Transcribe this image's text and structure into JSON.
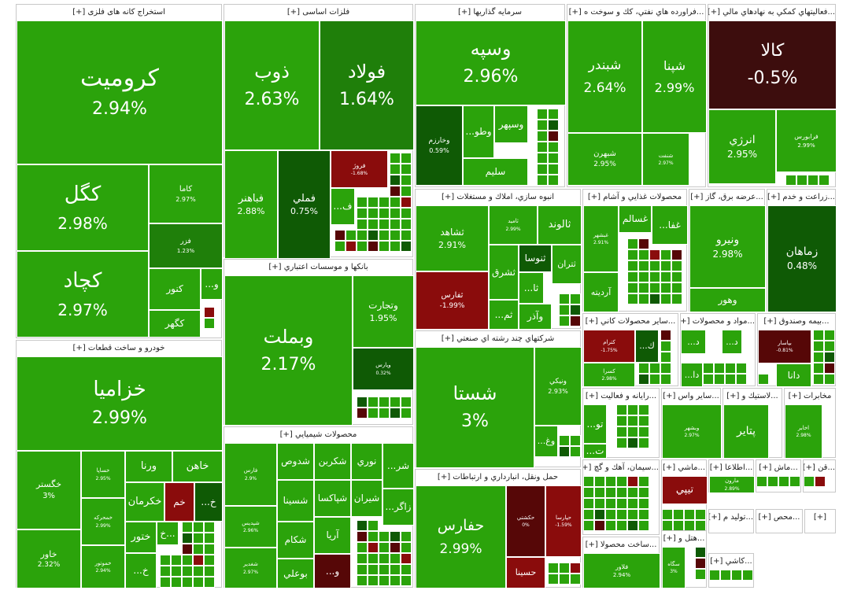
{
  "chart_data": {
    "type": "treemap",
    "colors": {
      "up": "#2ba30b",
      "up_mid": "#1f7f0a",
      "up_low": "#0f5a05",
      "flat": "#3d0d0d",
      "down": "#8a0c0c",
      "down_deep": "#560707",
      "bright_red": "#ff1f1f"
    },
    "sectors": [
      {
        "name": "استخراج کانه های فلزی [+]",
        "items": [
          {
            "name": "کروميت",
            "change": "2.94%"
          },
          {
            "name": "كگل",
            "change": "2.98%"
          },
          {
            "name": "کچاد",
            "change": "2.97%"
          },
          {
            "name": "کاما",
            "change": "2.97%"
          },
          {
            "name": "فزر",
            "change": "1.23%"
          },
          {
            "name": "کنور",
            "change": ""
          },
          {
            "name": "کگهر",
            "change": ""
          },
          {
            "name": "...و",
            "change": ""
          }
        ]
      },
      {
        "name": "فلزات اساسی [+]",
        "items": [
          {
            "name": "ذوب",
            "change": "2.63%"
          },
          {
            "name": "فولاد",
            "change": "1.64%"
          },
          {
            "name": "فباهنر",
            "change": "2.88%"
          },
          {
            "name": "فملي",
            "change": "0.75%"
          },
          {
            "name": "فروژ",
            "change": "-1.68%"
          },
          {
            "name": "...ف",
            "change": ""
          }
        ]
      },
      {
        "name": "سرمايه گذاريها [+]",
        "items": [
          {
            "name": "وسپه",
            "change": "2.96%"
          },
          {
            "name": "وخارزم",
            "change": "0.59%"
          },
          {
            "name": "...وطو",
            "change": ""
          },
          {
            "name": "وسپهر",
            "change": ""
          },
          {
            "name": "سليم",
            "change": ""
          }
        ]
      },
      {
        "name": "...فراورده هاي نفتي، كك و سوخت ه [+]",
        "items": [
          {
            "name": "شبندر",
            "change": "2.64%"
          },
          {
            "name": "شپنا",
            "change": "2.99%"
          },
          {
            "name": "شبهرن",
            "change": "2.95%"
          },
          {
            "name": "شنفت",
            "change": "2.97%"
          }
        ]
      },
      {
        "name": "...فعاليتهاي كمكي به نهادهاي مالي [+]",
        "items": [
          {
            "name": "كالا",
            "change": "-0.5%"
          },
          {
            "name": "انرژي",
            "change": "2.95%"
          },
          {
            "name": "فرابورس",
            "change": "2.99%"
          }
        ]
      },
      {
        "name": "انبوه سازي، املاك و مستغلات [+]",
        "items": [
          {
            "name": "ثشاهد",
            "change": "2.91%"
          },
          {
            "name": "ثاميد",
            "change": "2.99%"
          },
          {
            "name": "ثالوند",
            "change": ""
          },
          {
            "name": "ثشرق",
            "change": ""
          },
          {
            "name": "ثنوسا",
            "change": ""
          },
          {
            "name": "ثتران",
            "change": ""
          },
          {
            "name": "ثفارس",
            "change": "-1.99%"
          },
          {
            "name": "...ثا",
            "change": ""
          },
          {
            "name": "...ثم",
            "change": ""
          },
          {
            "name": "وآذر",
            "change": ""
          }
        ]
      },
      {
        "name": "محصولات غذايي و آشام [+]",
        "items": [
          {
            "name": "غبشهر",
            "change": "2.91%"
          },
          {
            "name": "غسالم",
            "change": ""
          },
          {
            "name": "...غفا",
            "change": ""
          },
          {
            "name": "آرديته",
            "change": ""
          }
        ]
      },
      {
        "name": "...عرضه برق، گاز [+]",
        "items": [
          {
            "name": "ونيرو",
            "change": "2.98%"
          },
          {
            "name": "وهور",
            "change": ""
          }
        ]
      },
      {
        "name": "...زراعت و خدم [+]",
        "items": [
          {
            "name": "زماهان",
            "change": "0.48%"
          }
        ]
      },
      {
        "name": "خودرو و ساخت قطعات [+]",
        "items": [
          {
            "name": "خزاميا",
            "change": "2.99%"
          },
          {
            "name": "خگستر",
            "change": "3%"
          },
          {
            "name": "خاور",
            "change": "2.32%"
          },
          {
            "name": "خساپا",
            "change": "2.95%"
          },
          {
            "name": "خمحرکه",
            "change": "2.99%"
          },
          {
            "name": "خموتور",
            "change": "2.94%"
          },
          {
            "name": "ورنا",
            "change": ""
          },
          {
            "name": "خاهن",
            "change": ""
          },
          {
            "name": "خكرمان",
            "change": ""
          },
          {
            "name": "خم",
            "change": ""
          },
          {
            "name": "...خ",
            "change": ""
          },
          {
            "name": "ختور",
            "change": ""
          },
          {
            "name": "خ...",
            "change": ""
          },
          {
            "name": "...خ",
            "change": ""
          }
        ]
      },
      {
        "name": "بانكها و موسسات اعتباري [+]",
        "items": [
          {
            "name": "وبملت",
            "change": "2.17%"
          },
          {
            "name": "وتجارت",
            "change": "1.95%"
          },
          {
            "name": "وپارس",
            "change": "0.32%"
          }
        ]
      },
      {
        "name": "محصولات شيميايي [+]",
        "items": [
          {
            "name": "فارس",
            "change": "2.9%"
          },
          {
            "name": "شدوص",
            "change": ""
          },
          {
            "name": "شکربن",
            "change": ""
          },
          {
            "name": "نوري",
            "change": ""
          },
          {
            "name": "...شر",
            "change": ""
          },
          {
            "name": "شپديس",
            "change": "2.96%"
          },
          {
            "name": "شسينا",
            "change": ""
          },
          {
            "name": "شپاکسا",
            "change": ""
          },
          {
            "name": "شيران",
            "change": ""
          },
          {
            "name": "...زاگر",
            "change": ""
          },
          {
            "name": "شکام",
            "change": ""
          },
          {
            "name": "آريا",
            "change": ""
          },
          {
            "name": "شغدير",
            "change": "2.97%"
          },
          {
            "name": "بوعلي",
            "change": ""
          },
          {
            "name": "...و",
            "change": ""
          }
        ]
      },
      {
        "name": "شركتهاي چند رشته اي صنعتي [+]",
        "items": [
          {
            "name": "شستا",
            "change": "3%"
          },
          {
            "name": "ونيکي",
            "change": "2.93%"
          },
          {
            "name": "...وغ",
            "change": ""
          }
        ]
      },
      {
        "name": "حمل ونقل، انبارداري و ارتباطات [+]",
        "items": [
          {
            "name": "حفارس",
            "change": "2.99%"
          },
          {
            "name": "حكشتي",
            "change": "0%"
          },
          {
            "name": "حپارسا",
            "change": "-1.59%"
          },
          {
            "name": "حسينا",
            "change": ""
          }
        ]
      },
      {
        "name": "...ساير محصولات كاني [+]",
        "items": [
          {
            "name": "كترام",
            "change": "-1.75%"
          },
          {
            "name": "...ك",
            "change": ""
          },
          {
            "name": "كسرا",
            "change": "2.98%"
          }
        ]
      },
      {
        "name": "...مواد و محصولات [+]",
        "items": [
          {
            "name": "...د",
            "change": ""
          },
          {
            "name": "...د",
            "change": ""
          },
          {
            "name": "...دا",
            "change": ""
          }
        ]
      },
      {
        "name": "...بيمه وصندوق [+]",
        "items": [
          {
            "name": "بپاسار",
            "change": "-0.81%"
          },
          {
            "name": "دانا",
            "change": ""
          }
        ]
      },
      {
        "name": "...رايانه و فعاليت [+]",
        "items": [
          {
            "name": "...تو",
            "change": ""
          },
          {
            "name": "...ت",
            "change": ""
          }
        ]
      },
      {
        "name": "...ساير واس [+]",
        "items": [
          {
            "name": "وبشهر",
            "change": "2.97%"
          }
        ]
      },
      {
        "name": "...لاستيك و [+]",
        "items": [
          {
            "name": "پتاير",
            "change": ""
          }
        ]
      },
      {
        "name": "مخابرات [+]",
        "items": [
          {
            "name": "اخابر",
            "change": "2.98%"
          }
        ]
      },
      {
        "name": "...سيمان، آهك و گچ [+]",
        "items": []
      },
      {
        "name": "...ماشي [+]",
        "items": [
          {
            "name": "تيپي",
            "change": ""
          }
        ]
      },
      {
        "name": "...اطلاعا [+]",
        "items": [
          {
            "name": "مارون",
            "change": "2.89%"
          }
        ]
      },
      {
        "name": "...ماش [+]",
        "items": []
      },
      {
        "name": "...قن [+]",
        "items": []
      },
      {
        "name": "...توليد م [+]",
        "items": []
      },
      {
        "name": "...محص [+]",
        "items": []
      },
      {
        "name": "...ساخت محصولا [+]",
        "items": [
          {
            "name": "فلاور",
            "change": "2.94%"
          }
        ]
      },
      {
        "name": "...هتل و [+]",
        "items": [
          {
            "name": "سگاه",
            "change": "3%"
          }
        ]
      },
      {
        "name": "...كاشي [+]",
        "items": []
      },
      {
        "name": "[+]",
        "items": []
      }
    ]
  }
}
